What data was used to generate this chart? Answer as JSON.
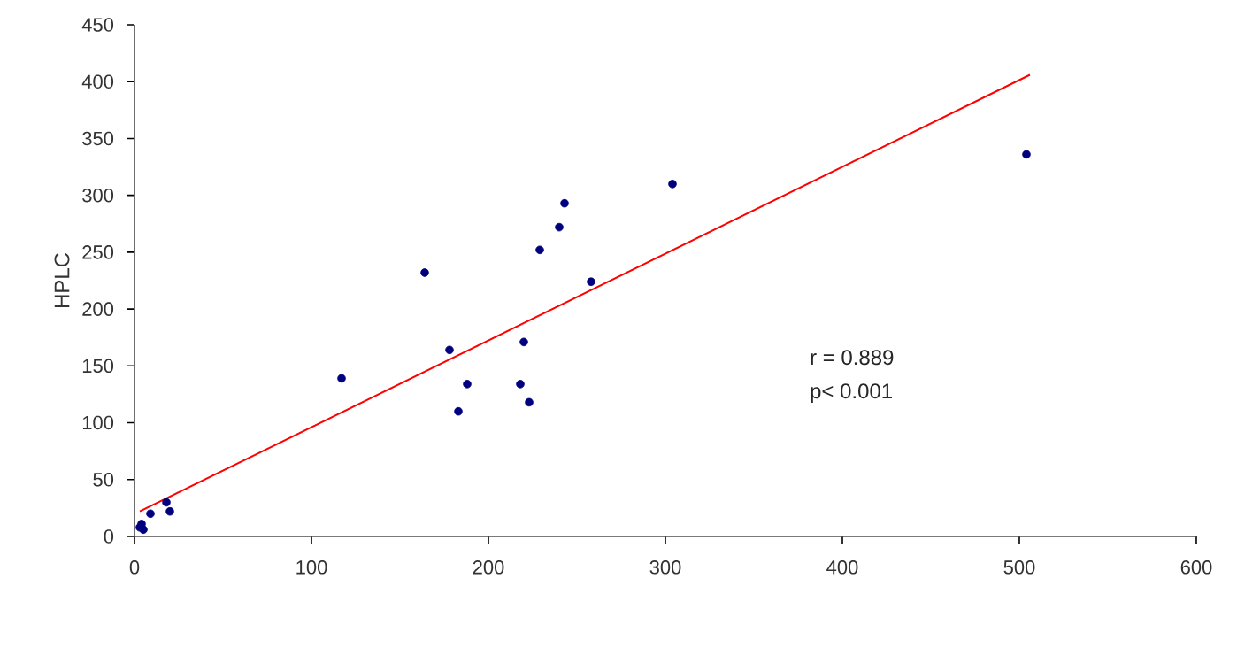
{
  "chart_data": {
    "type": "scatter",
    "ylabel": "HPLC",
    "xlim": [
      0,
      600
    ],
    "xticks": [
      0,
      100,
      200,
      300,
      400,
      500,
      600
    ],
    "ylim": [
      0,
      450
    ],
    "yticks": [
      0,
      50,
      100,
      150,
      200,
      250,
      300,
      350,
      400,
      450
    ],
    "marker": "circle",
    "annotations": [
      "r = 0.889",
      "p< 0.001"
    ],
    "series": [
      {
        "color": "#00007f",
        "x": [
          504,
          304,
          258,
          243,
          240,
          229,
          164,
          178,
          188,
          183,
          220,
          218,
          223,
          117,
          18,
          20,
          9,
          4,
          3,
          5
        ],
        "values": [
          336,
          310,
          224,
          293,
          272,
          252,
          232,
          164,
          134,
          110,
          171,
          134,
          118,
          139,
          30,
          22,
          20,
          11,
          8,
          6
        ]
      },
      {
        "type": "line",
        "color": "#ff0000",
        "marker": "none",
        "x": [
          3,
          506
        ],
        "values": [
          22,
          406
        ]
      }
    ]
  }
}
